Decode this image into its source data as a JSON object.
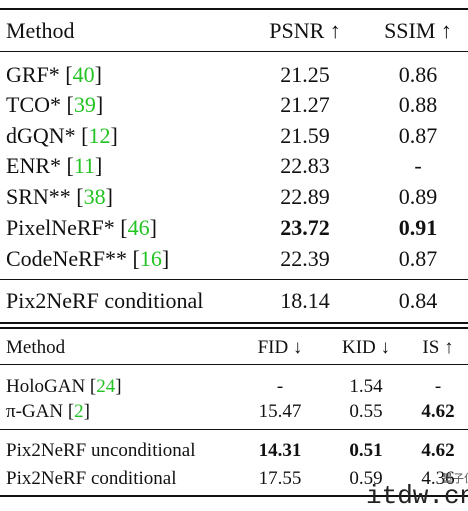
{
  "table1": {
    "header": [
      "Method",
      "PSNR ↑",
      "SSIM ↑"
    ],
    "rows": [
      {
        "method": "GRF*",
        "cite": "[40]",
        "cells": [
          21.25,
          0.86
        ]
      },
      {
        "method": "TCO*",
        "cite": "[39]",
        "cells": [
          21.27,
          0.88
        ]
      },
      {
        "method": "dGQN*",
        "cite": "[12]",
        "cells": [
          21.59,
          0.87
        ]
      },
      {
        "method": "ENR*",
        "cite": "[11]",
        "cells": [
          22.83,
          "-"
        ]
      },
      {
        "method": "SRN**",
        "cite": "[38]",
        "cells": [
          22.89,
          0.89
        ]
      },
      {
        "method": "PixelNeRF*",
        "cite": "[46]",
        "cells": [
          23.72,
          0.91
        ],
        "bold_cells": [
          0,
          1
        ]
      },
      {
        "method": "CodeNeRF**",
        "cite": "[16]",
        "cells": [
          22.39,
          0.87
        ]
      }
    ],
    "ours": [
      {
        "method": "Pix2NeRF conditional",
        "cells": [
          18.14,
          0.84
        ]
      }
    ]
  },
  "table2": {
    "header": [
      "Method",
      "FID ↓",
      "KID ↓",
      "IS ↑"
    ],
    "rows": [
      {
        "method": "HoloGAN",
        "cite": "[24]",
        "cells": [
          "-",
          1.54,
          "-"
        ]
      },
      {
        "method": "π-GAN",
        "cite": "[2]",
        "cells": [
          15.47,
          0.55,
          4.62
        ],
        "bold_cells": [
          2
        ]
      }
    ],
    "ours": [
      {
        "method": "Pix2NeRF unconditional",
        "cells": [
          14.31,
          0.51,
          4.62
        ],
        "bold_cells": [
          0,
          1,
          2
        ]
      },
      {
        "method": "Pix2NeRF conditional",
        "cells": [
          17.55,
          0.59,
          4.36
        ]
      }
    ]
  },
  "watermarks": [
    "量子位",
    "itdw.cn"
  ]
}
